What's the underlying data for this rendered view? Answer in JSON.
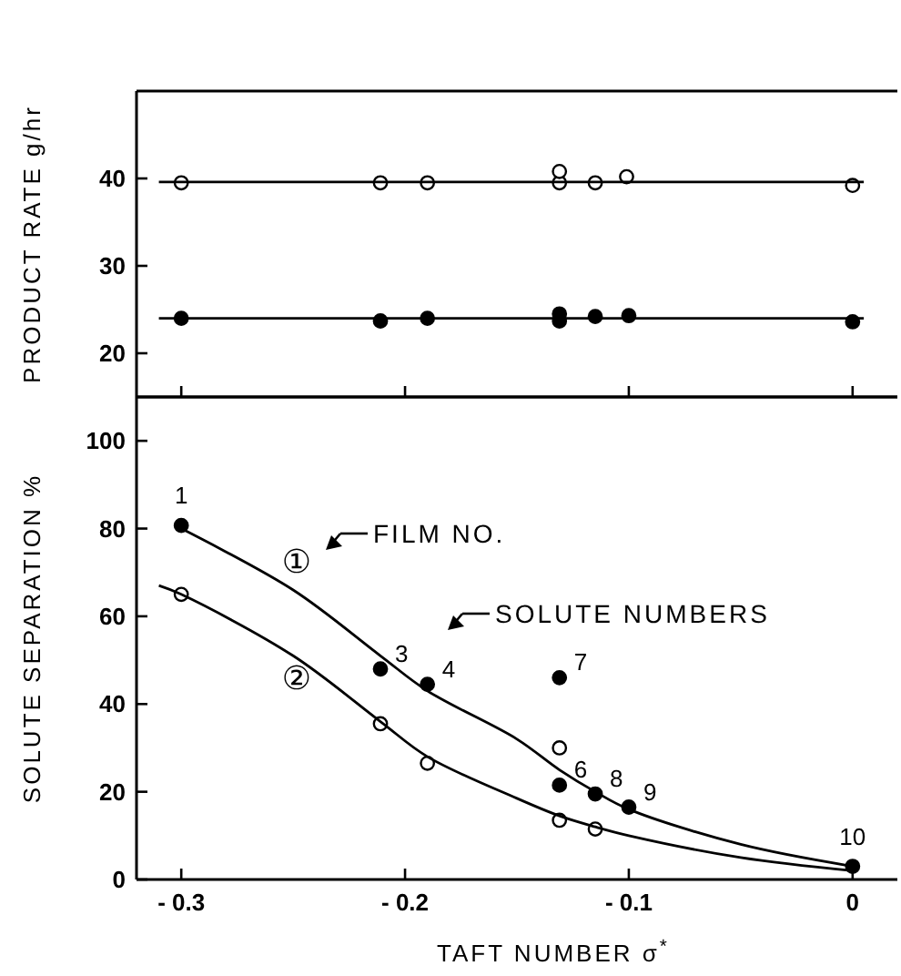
{
  "chart_data": [
    {
      "type": "scatter",
      "ylabel": "PRODUCT RATE g/hr",
      "xlim": [
        -0.32,
        0.02
      ],
      "ylim": [
        15,
        50
      ],
      "xticks": [
        -0.3,
        -0.2,
        -0.1,
        0
      ],
      "yticks": [
        20,
        30,
        40
      ],
      "tick_labels": "y",
      "marker": "circle",
      "series": [
        {
          "color": "#ffffff",
          "x": [
            -0.3,
            -0.211,
            -0.19,
            -0.131,
            -0.131,
            -0.115,
            -0.101,
            0
          ],
          "values": [
            39.5,
            39.5,
            39.5,
            39.5,
            40.8,
            39.5,
            40.2,
            39.2
          ]
        },
        {
          "color": "#000000",
          "x": [
            -0.3,
            -0.211,
            -0.19,
            -0.131,
            -0.131,
            -0.115,
            -0.1,
            0
          ],
          "values": [
            24,
            23.7,
            24,
            23.7,
            24.5,
            24.2,
            24.3,
            23.6
          ]
        },
        {
          "type": "line",
          "color": "#000000",
          "marker": "none",
          "x": [
            -0.31,
            0.005
          ],
          "values": [
            39.6,
            39.6
          ]
        },
        {
          "type": "line",
          "color": "#000000",
          "marker": "none",
          "x": [
            -0.31,
            0.005
          ],
          "values": [
            24,
            24
          ]
        }
      ]
    },
    {
      "type": "scatter",
      "ylabel": "SOLUTE SEPARATION %",
      "xlabel": "TAFT NUMBER σ$^{*}$",
      "xlim": [
        -0.32,
        0.02
      ],
      "ylim": [
        0,
        110
      ],
      "xticks": [
        -0.3,
        -0.2,
        -0.1,
        0
      ],
      "yticks": [
        0,
        20,
        40,
        60,
        80,
        100
      ],
      "marker": "circle",
      "series": [
        {
          "color": "#000000",
          "x": [
            -0.3,
            -0.211,
            -0.19,
            -0.131,
            -0.131,
            -0.115,
            -0.1,
            0
          ],
          "values": [
            80.7,
            48,
            44.5,
            46,
            21.5,
            19.5,
            16.5,
            3
          ]
        },
        {
          "color": "#ffffff",
          "x": [
            -0.3,
            -0.211,
            -0.19,
            -0.131,
            -0.131,
            -0.115
          ],
          "values": [
            65,
            35.5,
            26.5,
            30,
            13.5,
            11.5
          ]
        },
        {
          "type": "line",
          "color": "#000000",
          "marker": "none",
          "x": [
            -0.3,
            -0.25,
            -0.211,
            -0.19,
            -0.15,
            -0.131,
            -0.115,
            -0.1,
            -0.05,
            0
          ],
          "values": [
            80,
            66,
            51,
            43,
            32,
            25,
            20,
            16,
            8,
            3
          ]
        },
        {
          "type": "line",
          "color": "#000000",
          "marker": "none",
          "x": [
            -0.31,
            -0.3,
            -0.25,
            -0.211,
            -0.19,
            -0.15,
            -0.131,
            -0.115,
            -0.1,
            -0.05,
            0
          ],
          "values": [
            67,
            65,
            51,
            36,
            28,
            18.5,
            14.5,
            12,
            10,
            5,
            2
          ]
        }
      ],
      "annotations": [
        {
          "text": "1",
          "x": -0.3,
          "y": 80.7
        },
        {
          "text": "3",
          "x": -0.211,
          "y": 48
        },
        {
          "text": "4",
          "x": -0.19,
          "y": 44.5
        },
        {
          "text": "7",
          "x": -0.131,
          "y": 46
        },
        {
          "text": "6",
          "x": -0.131,
          "y": 21.5
        },
        {
          "text": "8",
          "x": -0.115,
          "y": 19.5
        },
        {
          "text": "9",
          "x": -0.1,
          "y": 16.5
        },
        {
          "text": "10",
          "x": 0,
          "y": 3
        },
        "①",
        "②",
        "FILM NO.",
        "SOLUTE NUMBERS"
      ]
    }
  ]
}
